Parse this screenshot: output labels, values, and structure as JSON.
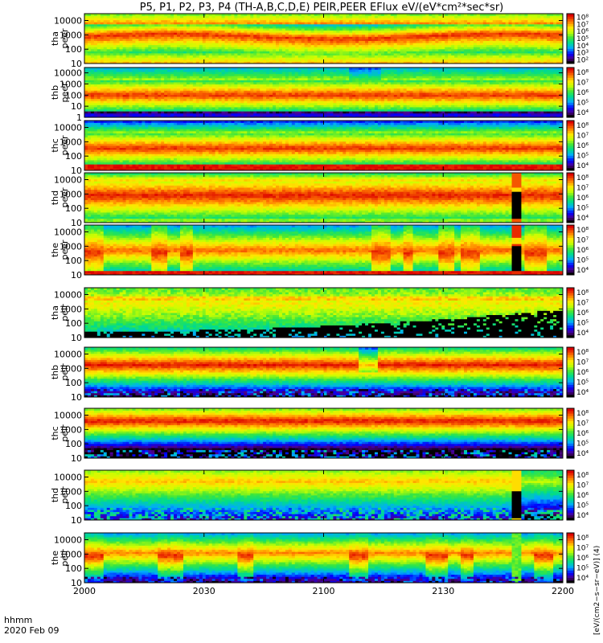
{
  "chart_data": {
    "type": "heatmap",
    "title": "P5, P1, P2, P3, P4 (TH-A,B,C,D,E) PEIR,PEER EFlux eV/(eV*cm²*sec*sr)",
    "x_axis": {
      "ticks": [
        "2000",
        "2030",
        "2100",
        "2130",
        "2200"
      ],
      "label_line1": "hhmm",
      "label_line2": "2020 Feb 09"
    },
    "colorbar_label": "[eV/(cm2−s−sr−eV)] (4)",
    "panels": [
      {
        "id": "tha-peer",
        "label_line1": "tha",
        "label_line2": "peer",
        "yticks": [
          "10",
          "100",
          "1000",
          "10000"
        ],
        "ylim": [
          10,
          30000
        ],
        "cb_ticks": [
          "10²",
          "10³",
          "10⁴",
          "10⁵",
          "10⁶",
          "10⁷",
          "10⁸"
        ],
        "profile": "electron_quiet"
      },
      {
        "id": "thb-peer",
        "label_line1": "thb",
        "label_line2": "peer",
        "yticks": [
          "1",
          "10",
          "100",
          "1000",
          "10000"
        ],
        "ylim": [
          1,
          30000
        ],
        "cb_ticks": [
          "10⁴",
          "10⁵",
          "10⁶",
          "10⁷",
          "10⁸"
        ],
        "profile": "electron_b"
      },
      {
        "id": "thc-peer",
        "label_line1": "thc",
        "label_line2": "peer",
        "yticks": [
          "10",
          "100",
          "1000",
          "10000"
        ],
        "ylim": [
          10,
          30000
        ],
        "cb_ticks": [
          "10⁴",
          "10⁵",
          "10⁶",
          "10⁷",
          "10⁸"
        ],
        "profile": "electron_c"
      },
      {
        "id": "thd-peer",
        "label_line1": "thd",
        "label_line2": "peer",
        "yticks": [
          "10",
          "100",
          "1000",
          "10000"
        ],
        "ylim": [
          10,
          30000
        ],
        "cb_ticks": [
          "10⁴",
          "10⁵",
          "10⁶",
          "10⁷",
          "10⁸"
        ],
        "profile": "electron_d"
      },
      {
        "id": "the-peer",
        "label_line1": "the",
        "label_line2": "peer",
        "yticks": [
          "10",
          "100",
          "1000",
          "10000"
        ],
        "ylim": [
          10,
          30000
        ],
        "cb_ticks": [
          "10⁴",
          "10⁵",
          "10⁶",
          "10⁷",
          "10⁸"
        ],
        "profile": "electron_e"
      },
      {
        "id": "tha-peir",
        "label_line1": "tha",
        "label_line2": "peir",
        "yticks": [
          "10",
          "100",
          "1000",
          "10000"
        ],
        "ylim": [
          10,
          30000
        ],
        "cb_ticks": [
          "10⁴",
          "10⁵",
          "10⁶",
          "10⁷",
          "10⁸"
        ],
        "profile": "ion_a"
      },
      {
        "id": "thb-peir",
        "label_line1": "thb",
        "label_line2": "peir",
        "yticks": [
          "10",
          "100",
          "1000",
          "10000"
        ],
        "ylim": [
          10,
          30000
        ],
        "cb_ticks": [
          "10⁴",
          "10⁵",
          "10⁶",
          "10⁷",
          "10⁸"
        ],
        "profile": "ion_b"
      },
      {
        "id": "thc-peir",
        "label_line1": "thc",
        "label_line2": "peir",
        "yticks": [
          "10",
          "100",
          "1000",
          "10000"
        ],
        "ylim": [
          10,
          30000
        ],
        "cb_ticks": [
          "10⁴",
          "10⁵",
          "10⁶",
          "10⁷",
          "10⁸"
        ],
        "profile": "ion_c"
      },
      {
        "id": "thd-peir",
        "label_line1": "thd",
        "label_line2": "peir",
        "yticks": [
          "10",
          "100",
          "1000",
          "10000"
        ],
        "ylim": [
          10,
          30000
        ],
        "cb_ticks": [
          "10⁴",
          "10⁵",
          "10⁶",
          "10⁷",
          "10⁸"
        ],
        "profile": "ion_d"
      },
      {
        "id": "the-peir",
        "label_line1": "the",
        "label_line2": "peir",
        "yticks": [
          "10",
          "100",
          "1000",
          "10000"
        ],
        "ylim": [
          10,
          30000
        ],
        "cb_ticks": [
          "10⁴",
          "10⁵",
          "10⁶",
          "10⁷",
          "10⁸"
        ],
        "profile": "ion_e"
      }
    ]
  }
}
